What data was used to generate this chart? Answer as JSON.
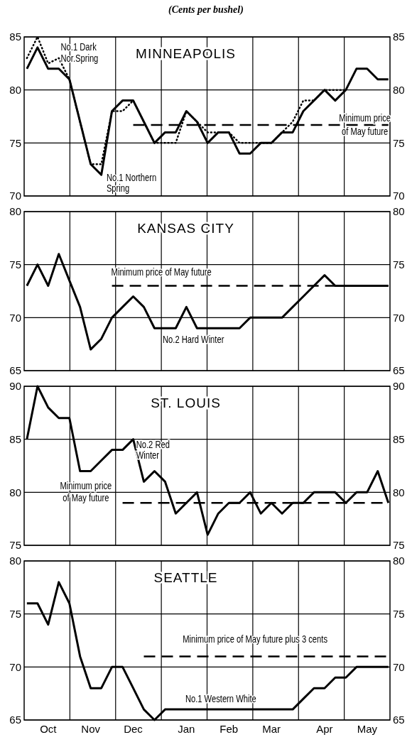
{
  "chart_data": [
    {
      "type": "line",
      "subtitle": "(Cents per bushel)",
      "title": "MINNEAPOLIS",
      "categories": [
        null,
        null,
        null,
        null,
        null,
        null,
        null,
        null,
        null,
        null,
        null,
        null,
        null,
        null,
        null,
        null,
        null,
        null,
        null,
        null,
        null,
        null,
        null,
        null,
        null,
        null,
        null,
        null,
        null,
        null,
        null,
        null,
        null,
        null,
        null
      ],
      "ylim": [
        70,
        85
      ],
      "yticks": [
        70,
        75,
        80,
        85
      ],
      "y2lim": [
        70,
        85
      ],
      "y2ticks": [
        70,
        75,
        80,
        85
      ],
      "grid": true,
      "tick_labels": "y",
      "series": [
        {
          "name": "No.1 Northern Spring",
          "color": "#000000",
          "line_style": "solid",
          "values": [
            82,
            84,
            82,
            82,
            81,
            77,
            73,
            72,
            78,
            79,
            79,
            77,
            75,
            76,
            76,
            78,
            77,
            75,
            76,
            76,
            74,
            74,
            75,
            75,
            76,
            76,
            78,
            79,
            80,
            79,
            80,
            82,
            82,
            81,
            81
          ]
        },
        {
          "name": "No.1 Dark Nor.Spring",
          "color": "#000000",
          "line_style": "dotted",
          "values": [
            83,
            85,
            82.5,
            83,
            81,
            77,
            73,
            73,
            78,
            78,
            79,
            77,
            75,
            75,
            75,
            78,
            77,
            76,
            76,
            76,
            75,
            75,
            75,
            75,
            76,
            77,
            79,
            79,
            80,
            80,
            80,
            null,
            null,
            null,
            null
          ]
        },
        {
          "name": "Minimum price of May future",
          "color": "#000000",
          "line_style": "dashed",
          "values": [
            null,
            null,
            null,
            null,
            null,
            null,
            null,
            null,
            null,
            null,
            76.7,
            76.7,
            76.7,
            76.7,
            76.7,
            76.7,
            76.7,
            76.7,
            76.7,
            76.7,
            76.7,
            76.7,
            76.7,
            76.7,
            76.7,
            76.7,
            76.7,
            76.7,
            76.7,
            76.7,
            76.7,
            76.7,
            76.7,
            76.7,
            76.7
          ]
        }
      ]
    },
    {
      "type": "line",
      "title": "KANSAS CITY",
      "categories": [
        null,
        null,
        null,
        null,
        null,
        null,
        null,
        null,
        null,
        null,
        null,
        null,
        null,
        null,
        null,
        null,
        null,
        null,
        null,
        null,
        null,
        null,
        null,
        null,
        null,
        null,
        null,
        null,
        null,
        null,
        null,
        null,
        null,
        null,
        null
      ],
      "ylim": [
        65,
        80
      ],
      "yticks": [
        65,
        70,
        75,
        80
      ],
      "y2lim": [
        65,
        80
      ],
      "y2ticks": [
        65,
        70,
        75,
        80
      ],
      "grid": true,
      "tick_labels": "y",
      "series": [
        {
          "name": "No.2 Hard Winter",
          "color": "#000000",
          "line_style": "solid",
          "values": [
            73,
            75,
            73,
            76,
            73.5,
            71,
            67,
            68,
            70,
            71,
            72,
            71,
            69,
            69,
            69,
            71,
            69,
            69,
            69,
            69,
            69,
            70,
            70,
            70,
            70,
            71,
            72,
            73,
            74,
            73,
            73,
            73,
            73,
            73,
            73
          ]
        },
        {
          "name": "Minimum price of May future",
          "color": "#000000",
          "line_style": "dashed",
          "values": [
            null,
            null,
            null,
            null,
            null,
            null,
            null,
            null,
            73,
            73,
            73,
            73,
            73,
            73,
            73,
            73,
            73,
            73,
            73,
            73,
            73,
            73,
            73,
            73,
            73,
            73,
            73,
            73,
            73,
            73,
            73,
            73,
            73,
            73,
            73
          ]
        }
      ]
    },
    {
      "type": "line",
      "title": "ST. LOUIS",
      "categories": [
        null,
        null,
        null,
        null,
        null,
        null,
        null,
        null,
        null,
        null,
        null,
        null,
        null,
        null,
        null,
        null,
        null,
        null,
        null,
        null,
        null,
        null,
        null,
        null,
        null,
        null,
        null,
        null,
        null,
        null,
        null,
        null,
        null,
        null,
        null
      ],
      "ylim": [
        75,
        90
      ],
      "yticks": [
        75,
        80,
        85,
        90
      ],
      "y2lim": [
        75,
        90
      ],
      "y2ticks": [
        75,
        80,
        85,
        90
      ],
      "grid": true,
      "tick_labels": "y",
      "series": [
        {
          "name": "No.2 Red Winter",
          "color": "#000000",
          "line_style": "solid",
          "values": [
            85,
            90,
            88,
            87,
            87,
            82,
            82,
            83,
            84,
            84,
            85,
            81,
            82,
            81,
            78,
            79,
            80,
            76,
            78,
            79,
            79,
            80,
            78,
            79,
            78,
            79,
            79,
            80,
            80,
            80,
            79,
            80,
            80,
            82,
            79
          ]
        },
        {
          "name": "Minimum price of May future",
          "color": "#000000",
          "line_style": "dashed",
          "values": [
            null,
            null,
            null,
            null,
            null,
            null,
            null,
            null,
            null,
            79,
            79,
            79,
            79,
            79,
            79,
            79,
            79,
            79,
            79,
            79,
            79,
            79,
            79,
            79,
            79,
            79,
            79,
            79,
            79,
            79,
            79,
            79,
            79,
            79,
            79
          ]
        }
      ]
    },
    {
      "type": "line",
      "title": "SEATTLE",
      "categories": [
        null,
        null,
        "Oct",
        null,
        null,
        null,
        "Nov",
        null,
        null,
        null,
        "Dec",
        null,
        null,
        null,
        null,
        "Jan",
        null,
        null,
        null,
        "Feb",
        null,
        null,
        null,
        "Mar",
        null,
        null,
        null,
        null,
        "Apr",
        null,
        null,
        null,
        "May",
        null,
        null
      ],
      "ylim": [
        65,
        80
      ],
      "yticks": [
        65,
        70,
        75,
        80
      ],
      "y2lim": [
        65,
        80
      ],
      "y2ticks": [
        65,
        70,
        75,
        80
      ],
      "grid": true,
      "series": [
        {
          "name": "No.1 Western White",
          "color": "#000000",
          "line_style": "solid",
          "values": [
            76,
            76,
            74,
            78,
            76,
            71,
            68,
            68,
            70,
            70,
            68,
            66,
            65,
            66,
            66,
            66,
            66,
            66,
            66,
            66,
            66,
            66,
            66,
            66,
            66,
            66,
            67,
            68,
            68,
            69,
            69,
            70,
            70,
            70,
            70
          ]
        },
        {
          "name": "Minimum price of May future plus 3 cents",
          "color": "#000000",
          "line_style": "dashed",
          "values": [
            null,
            null,
            null,
            null,
            null,
            null,
            null,
            null,
            null,
            null,
            null,
            71,
            71,
            71,
            71,
            71,
            71,
            71,
            71,
            71,
            71,
            71,
            71,
            71,
            71,
            71,
            71,
            71,
            71,
            71,
            71,
            71,
            71,
            71,
            71
          ]
        }
      ]
    }
  ]
}
